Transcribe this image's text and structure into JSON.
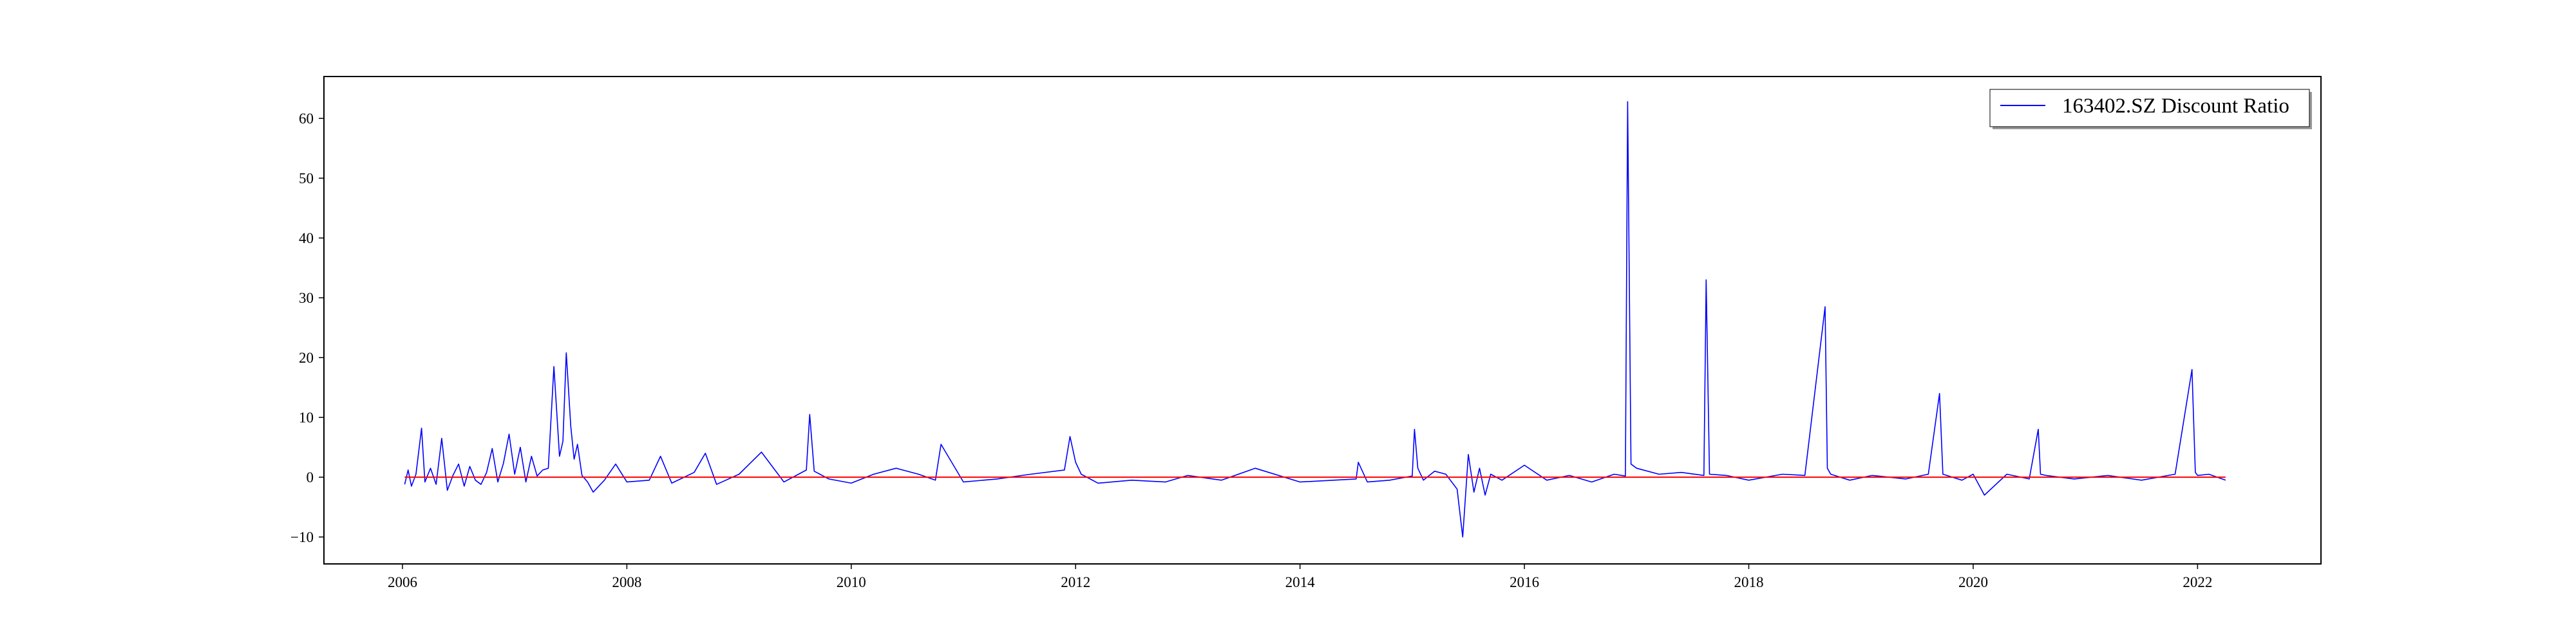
{
  "chart_data": {
    "type": "line",
    "title": "",
    "xlabel": "",
    "ylabel": "",
    "xlim": [
      2005.3,
      2023.1
    ],
    "ylim": [
      -14.5,
      67.0
    ],
    "x_ticks": [
      2006,
      2008,
      2010,
      2012,
      2014,
      2016,
      2018,
      2020,
      2022
    ],
    "x_tick_labels": [
      "2006",
      "2008",
      "2010",
      "2012",
      "2014",
      "2016",
      "2018",
      "2020",
      "2022"
    ],
    "y_ticks": [
      -10,
      0,
      10,
      20,
      30,
      40,
      50,
      60
    ],
    "y_tick_labels": [
      "−10",
      "0",
      "10",
      "20",
      "30",
      "40",
      "50",
      "60"
    ],
    "grid": false,
    "legend": {
      "position": "top-right",
      "entries": [
        "163402.SZ Discount Ratio"
      ]
    },
    "series": [
      {
        "name": "163402.SZ Discount Ratio",
        "color": "#0000ff",
        "x": [
          2006.02,
          2006.05,
          2006.08,
          2006.12,
          2006.17,
          2006.2,
          2006.25,
          2006.3,
          2006.35,
          2006.4,
          2006.45,
          2006.5,
          2006.55,
          2006.6,
          2006.65,
          2006.7,
          2006.75,
          2006.8,
          2006.85,
          2006.9,
          2006.95,
          2007.0,
          2007.05,
          2007.1,
          2007.15,
          2007.2,
          2007.25,
          2007.3,
          2007.35,
          2007.4,
          2007.43,
          2007.46,
          2007.5,
          2007.53,
          2007.56,
          2007.6,
          2007.65,
          2007.7,
          2007.75,
          2007.8,
          2007.9,
          2008.0,
          2008.2,
          2008.3,
          2008.4,
          2008.6,
          2008.7,
          2008.8,
          2009.0,
          2009.2,
          2009.4,
          2009.6,
          2009.63,
          2009.67,
          2009.8,
          2010.0,
          2010.2,
          2010.4,
          2010.6,
          2010.75,
          2010.8,
          2011.0,
          2011.3,
          2011.6,
          2011.9,
          2011.95,
          2012.0,
          2012.05,
          2012.2,
          2012.5,
          2012.8,
          2013.0,
          2013.3,
          2013.6,
          2014.0,
          2014.3,
          2014.5,
          2014.52,
          2014.6,
          2014.8,
          2015.0,
          2015.02,
          2015.05,
          2015.1,
          2015.2,
          2015.3,
          2015.4,
          2015.45,
          2015.5,
          2015.55,
          2015.6,
          2015.65,
          2015.7,
          2015.8,
          2016.0,
          2016.2,
          2016.4,
          2016.6,
          2016.8,
          2016.9,
          2016.92,
          2016.95,
          2017.0,
          2017.2,
          2017.4,
          2017.6,
          2017.62,
          2017.65,
          2017.8,
          2018.0,
          2018.3,
          2018.5,
          2018.68,
          2018.7,
          2018.73,
          2018.9,
          2019.1,
          2019.4,
          2019.6,
          2019.7,
          2019.73,
          2019.9,
          2020.0,
          2020.1,
          2020.3,
          2020.5,
          2020.58,
          2020.6,
          2020.65,
          2020.9,
          2021.2,
          2021.5,
          2021.8,
          2021.95,
          2021.98,
          2022.0,
          2022.1,
          2022.25
        ],
        "values": [
          -1.2,
          1.2,
          -1.5,
          0.5,
          8.2,
          -0.8,
          1.5,
          -1.2,
          6.5,
          -2.2,
          0.3,
          2.2,
          -1.5,
          1.8,
          -0.5,
          -1.2,
          0.8,
          4.8,
          -0.8,
          2.3,
          7.2,
          0.5,
          5.0,
          -0.8,
          3.5,
          0.2,
          1.2,
          1.5,
          18.5,
          3.5,
          6.0,
          20.8,
          8.5,
          3.0,
          5.5,
          0.3,
          -0.8,
          -2.5,
          -1.5,
          -0.5,
          2.2,
          -0.8,
          -0.5,
          3.5,
          -1.0,
          0.8,
          4.0,
          -1.2,
          0.5,
          4.2,
          -0.8,
          1.2,
          10.5,
          1.0,
          -0.3,
          -1.0,
          0.5,
          1.5,
          0.5,
          -0.5,
          5.5,
          -0.8,
          -0.3,
          0.5,
          1.2,
          6.8,
          2.5,
          0.5,
          -1.0,
          -0.5,
          -0.8,
          0.3,
          -0.5,
          1.5,
          -0.8,
          -0.5,
          -0.3,
          2.5,
          -0.8,
          -0.5,
          0.2,
          8.0,
          1.5,
          -0.5,
          1.0,
          0.5,
          -2.0,
          -10.0,
          3.8,
          -2.5,
          1.5,
          -3.0,
          0.5,
          -0.5,
          2.0,
          -0.5,
          0.3,
          -0.8,
          0.5,
          0.2,
          62.8,
          2.2,
          1.5,
          0.5,
          0.8,
          0.3,
          33.0,
          0.5,
          0.3,
          -0.5,
          0.5,
          0.3,
          28.5,
          1.5,
          0.5,
          -0.5,
          0.3,
          -0.3,
          0.5,
          14.0,
          0.5,
          -0.5,
          0.5,
          -3.0,
          0.5,
          -0.3,
          8.0,
          0.5,
          0.3,
          -0.3,
          0.3,
          -0.5,
          0.5,
          18.0,
          0.8,
          0.3,
          0.5,
          -0.5
        ]
      },
      {
        "name": "",
        "color": "#ff0000",
        "x": [
          2006.02,
          2022.25
        ],
        "values": [
          0,
          0
        ]
      }
    ]
  }
}
